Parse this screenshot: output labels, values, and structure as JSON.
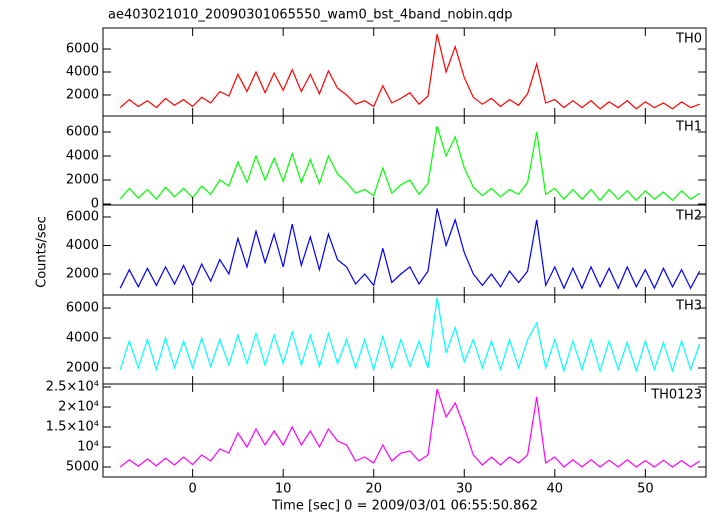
{
  "chart_data": {
    "type": "line",
    "title": "ae403021010_20090301065550_wam0_bst_4band_nobin.qdp",
    "xlabel": "Time [sec] 0 = 2009/03/01 06:55:50.862",
    "ylabel": "Counts/sec",
    "xlim": [
      -9.9,
      56.7
    ],
    "xticks": [
      0,
      10,
      20,
      30,
      40,
      50
    ],
    "x": [
      -8,
      -7,
      -6,
      -5,
      -4,
      -3,
      -2,
      -1,
      0,
      1,
      2,
      3,
      4,
      5,
      6,
      7,
      8,
      9,
      10,
      11,
      12,
      13,
      14,
      15,
      16,
      17,
      18,
      19,
      20,
      21,
      22,
      23,
      24,
      25,
      26,
      27,
      28,
      29,
      30,
      31,
      32,
      33,
      34,
      35,
      36,
      37,
      38,
      39,
      40,
      41,
      42,
      43,
      44,
      45,
      46,
      47,
      48,
      49,
      50,
      51,
      52,
      53,
      54,
      55,
      56
    ],
    "panels": [
      {
        "name": "TH0",
        "color": "#ff0000",
        "ylim": [
          170,
          7830
        ],
        "yticks": [
          2000,
          4000,
          6000
        ],
        "values": [
          900,
          1600,
          1000,
          1500,
          900,
          1700,
          1100,
          1600,
          1000,
          1800,
          1300,
          2300,
          1900,
          3800,
          2300,
          4000,
          2200,
          3900,
          2400,
          4200,
          2300,
          3800,
          2100,
          4100,
          2600,
          2000,
          1200,
          1500,
          1000,
          2800,
          1300,
          1700,
          2200,
          1200,
          1900,
          7300,
          4000,
          6200,
          3500,
          1800,
          1200,
          1700,
          1000,
          1600,
          1100,
          2100,
          4700,
          1300,
          1600,
          900,
          1500,
          900,
          1500,
          800,
          1400,
          900,
          1500,
          800,
          1400,
          900,
          1300,
          800,
          1400,
          900,
          1200
        ]
      },
      {
        "name": "TH1",
        "color": "#00ff00",
        "ylim": [
          -80,
          7330
        ],
        "yticks": [
          0,
          2000,
          4000,
          6000
        ],
        "values": [
          400,
          1300,
          500,
          1200,
          400,
          1400,
          600,
          1300,
          500,
          1500,
          800,
          2000,
          1500,
          3500,
          1800,
          4000,
          2000,
          3800,
          1900,
          4200,
          1800,
          3700,
          1700,
          4000,
          2500,
          1800,
          900,
          1200,
          700,
          3000,
          900,
          1600,
          2000,
          800,
          1700,
          6500,
          4000,
          5600,
          3000,
          1400,
          700,
          1300,
          600,
          1200,
          800,
          1800,
          6000,
          800,
          1300,
          400,
          1200,
          400,
          1200,
          300,
          1200,
          400,
          1100,
          300,
          1100,
          400,
          1000,
          300,
          1100,
          400,
          900
        ]
      },
      {
        "name": "TH2",
        "color": "#0000ff",
        "ylim": [
          526,
          6840
        ],
        "yticks": [
          2000,
          4000,
          6000
        ],
        "values": [
          1000,
          2300,
          1100,
          2400,
          1200,
          2500,
          1300,
          2600,
          1200,
          2700,
          1500,
          3000,
          2000,
          4500,
          2500,
          5000,
          2800,
          4800,
          2500,
          5500,
          2600,
          4600,
          2300,
          4800,
          3000,
          2500,
          1300,
          2000,
          1200,
          3800,
          1400,
          2000,
          2500,
          1300,
          2200,
          6600,
          4000,
          5800,
          3500,
          2000,
          1200,
          2000,
          1100,
          2200,
          1400,
          2200,
          5800,
          1200,
          2500,
          1000,
          2400,
          1000,
          2500,
          1100,
          2400,
          1000,
          2500,
          1100,
          2300,
          1000,
          2400,
          1100,
          2300,
          1000,
          2200
        ]
      },
      {
        "name": "TH3",
        "color": "#00ffff",
        "ylim": [
          933,
          6870
        ],
        "yticks": [
          2000,
          4000,
          6000
        ],
        "values": [
          1900,
          3800,
          2000,
          3900,
          1900,
          4000,
          2000,
          3800,
          2000,
          4000,
          2100,
          3900,
          2200,
          4200,
          2300,
          4300,
          2200,
          4200,
          2300,
          4400,
          2200,
          4200,
          2100,
          4300,
          2300,
          3900,
          2000,
          3900,
          1900,
          4100,
          2000,
          3900,
          2100,
          3800,
          2000,
          6700,
          3000,
          4700,
          2400,
          3900,
          2000,
          3800,
          1900,
          3900,
          2000,
          3900,
          5000,
          2000,
          3900,
          1800,
          3800,
          1900,
          3900,
          1800,
          3800,
          1900,
          3700,
          1800,
          3800,
          1900,
          3700,
          1800,
          3800,
          1900,
          3600
        ]
      },
      {
        "name": "TH0123",
        "color": "#ff00ff",
        "ylim": [
          2500,
          25750
        ],
        "yticks": [
          5000,
          {
            "value": 10000,
            "label": "10⁴"
          },
          {
            "value": 15000,
            "label": "1.5×10⁴"
          },
          {
            "value": 20000,
            "label": "2×10⁴"
          },
          {
            "value": 25000,
            "label": "2.5×10⁴"
          }
        ],
        "values": [
          5000,
          6800,
          5200,
          7000,
          5300,
          7200,
          5500,
          7500,
          5600,
          8000,
          6500,
          9500,
          8500,
          13500,
          10000,
          14500,
          10500,
          14000,
          10500,
          15000,
          10500,
          14000,
          10000,
          14500,
          11500,
          10500,
          6500,
          7500,
          6000,
          10500,
          6500,
          8500,
          9000,
          6500,
          8000,
          24500,
          17500,
          21000,
          15000,
          8000,
          5500,
          7500,
          5500,
          7500,
          6000,
          8000,
          22500,
          6000,
          7500,
          5000,
          6800,
          5000,
          6800,
          5000,
          6700,
          5000,
          6800,
          5000,
          6600,
          5000,
          6700,
          5000,
          6600,
          5000,
          6500
        ]
      }
    ]
  }
}
